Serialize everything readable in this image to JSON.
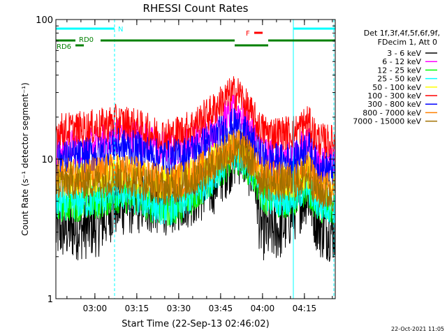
{
  "chart_data": {
    "type": "line",
    "title": "RHESSI Count Rates",
    "xlabel": "Start Time (22-Sep-13 02:46:02)",
    "ylabel": "Count Rate (s⁻¹ detector segment⁻¹)",
    "yscale": "log",
    "ylim": [
      1,
      100
    ],
    "xlim": [
      "02:46:02",
      "04:26:00"
    ],
    "x_ticks": [
      "03:00",
      "03:15",
      "03:30",
      "03:45",
      "04:00",
      "04:15"
    ],
    "y_ticks": [
      "1",
      "10",
      "100"
    ],
    "legend_header": [
      "Det 1f,3f,4f,5f,6f,9f,",
      "FDecim 1, Att 0"
    ],
    "legend_position": "right",
    "footer": "22-Oct-2021 11:05",
    "x_key_minutes": [
      0,
      10,
      16,
      21,
      26,
      31,
      36,
      41,
      46,
      51,
      56,
      61,
      64,
      66,
      68,
      71,
      73,
      76,
      81,
      86,
      90,
      93,
      95,
      99
    ],
    "series": [
      {
        "name": "3 - 6 keV",
        "color": "#000000",
        "values": [
          3.1,
          3.2,
          3.4,
          4.6,
          4.8,
          4.9,
          4.8,
          4.8,
          5.3,
          5.8,
          6.5,
          8.8,
          10.5,
          11.0,
          10.0,
          7.5,
          3.3,
          3.0,
          3.2,
          4.5,
          5.8,
          3.8,
          3.2,
          3.1
        ]
      },
      {
        "name": "6 - 12 keV",
        "color": "#ff00ff",
        "values": [
          12.0,
          12.4,
          13.0,
          15.0,
          15.2,
          14.0,
          12.3,
          11.6,
          12.6,
          14.2,
          16.0,
          20.0,
          22.0,
          21.5,
          18.0,
          15.5,
          12.5,
          11.2,
          10.8,
          11.2,
          13.0,
          10.5,
          9.5,
          9.2
        ]
      },
      {
        "name": "12 - 25 keV",
        "color": "#00ff00",
        "values": [
          4.7,
          4.8,
          5.0,
          5.5,
          5.4,
          5.0,
          4.5,
          4.4,
          4.8,
          5.8,
          7.2,
          9.2,
          10.3,
          10.2,
          9.2,
          7.5,
          5.7,
          5.2,
          5.0,
          5.2,
          6.3,
          4.8,
          4.5,
          4.4
        ]
      },
      {
        "name": "25 - 50 keV",
        "color": "#00ffff",
        "values": [
          4.8,
          5.0,
          5.2,
          5.8,
          5.6,
          5.2,
          4.6,
          4.5,
          4.9,
          6.0,
          7.5,
          9.6,
          10.8,
          10.6,
          9.5,
          7.8,
          5.9,
          5.4,
          5.2,
          5.4,
          6.5,
          5.0,
          4.7,
          4.6
        ]
      },
      {
        "name": "50 - 100 keV",
        "color": "#ffff00",
        "values": [
          7.2,
          7.3,
          7.5,
          8.0,
          7.9,
          7.4,
          6.9,
          6.8,
          7.2,
          8.0,
          9.5,
          11.8,
          12.5,
          12.3,
          11.5,
          9.8,
          7.8,
          7.3,
          7.0,
          7.2,
          8.3,
          6.7,
          6.3,
          6.1
        ]
      },
      {
        "name": "100 - 300 keV",
        "color": "#ff0000",
        "values": [
          16.0,
          16.5,
          17.2,
          18.5,
          18.0,
          16.5,
          15.0,
          14.8,
          16.0,
          18.5,
          22.0,
          27.5,
          30.0,
          29.0,
          24.0,
          19.5,
          16.5,
          15.5,
          15.2,
          15.8,
          18.5,
          14.5,
          13.5,
          13.2
        ]
      },
      {
        "name": "300 - 800 keV",
        "color": "#0000ff",
        "values": [
          10.0,
          10.5,
          11.0,
          12.5,
          12.2,
          11.5,
          10.5,
          10.2,
          10.8,
          12.0,
          14.0,
          16.5,
          17.5,
          17.0,
          14.8,
          12.5,
          10.5,
          9.9,
          9.6,
          10.0,
          12.5,
          9.2,
          8.6,
          8.4
        ]
      },
      {
        "name": "800 - 7000 keV",
        "color": "#ff8000",
        "values": [
          7.6,
          7.7,
          7.9,
          8.3,
          8.1,
          7.6,
          7.0,
          6.9,
          7.3,
          8.1,
          9.6,
          11.5,
          12.3,
          12.1,
          11.3,
          9.6,
          7.9,
          7.4,
          7.1,
          7.3,
          8.6,
          6.7,
          6.2,
          6.0
        ]
      },
      {
        "name": "7000 - 15000 keV",
        "color": "#a07000",
        "values": [
          6.8,
          6.9,
          7.0,
          7.4,
          7.2,
          6.8,
          6.3,
          6.2,
          6.6,
          7.4,
          8.8,
          10.5,
          11.2,
          11.0,
          10.3,
          8.8,
          7.2,
          6.7,
          6.5,
          6.7,
          7.8,
          6.1,
          5.7,
          5.5
        ]
      }
    ],
    "intervals": [
      {
        "label": "N",
        "color": "#00ffff",
        "spans_minutes": [
          [
            0,
            21
          ],
          [
            85,
            100
          ]
        ]
      },
      {
        "label": "RD0",
        "color": "#008000",
        "spans_minutes": [
          [
            0,
            7
          ],
          [
            16,
            64
          ],
          [
            76,
            100
          ]
        ]
      },
      {
        "label": "RD6",
        "color": "#008000",
        "spans_minutes": [
          [
            7,
            10
          ],
          [
            64,
            76
          ]
        ]
      },
      {
        "label": "F",
        "color": "#ff0000",
        "spans_minutes": [
          [
            71,
            74
          ]
        ]
      }
    ],
    "grid": false
  }
}
